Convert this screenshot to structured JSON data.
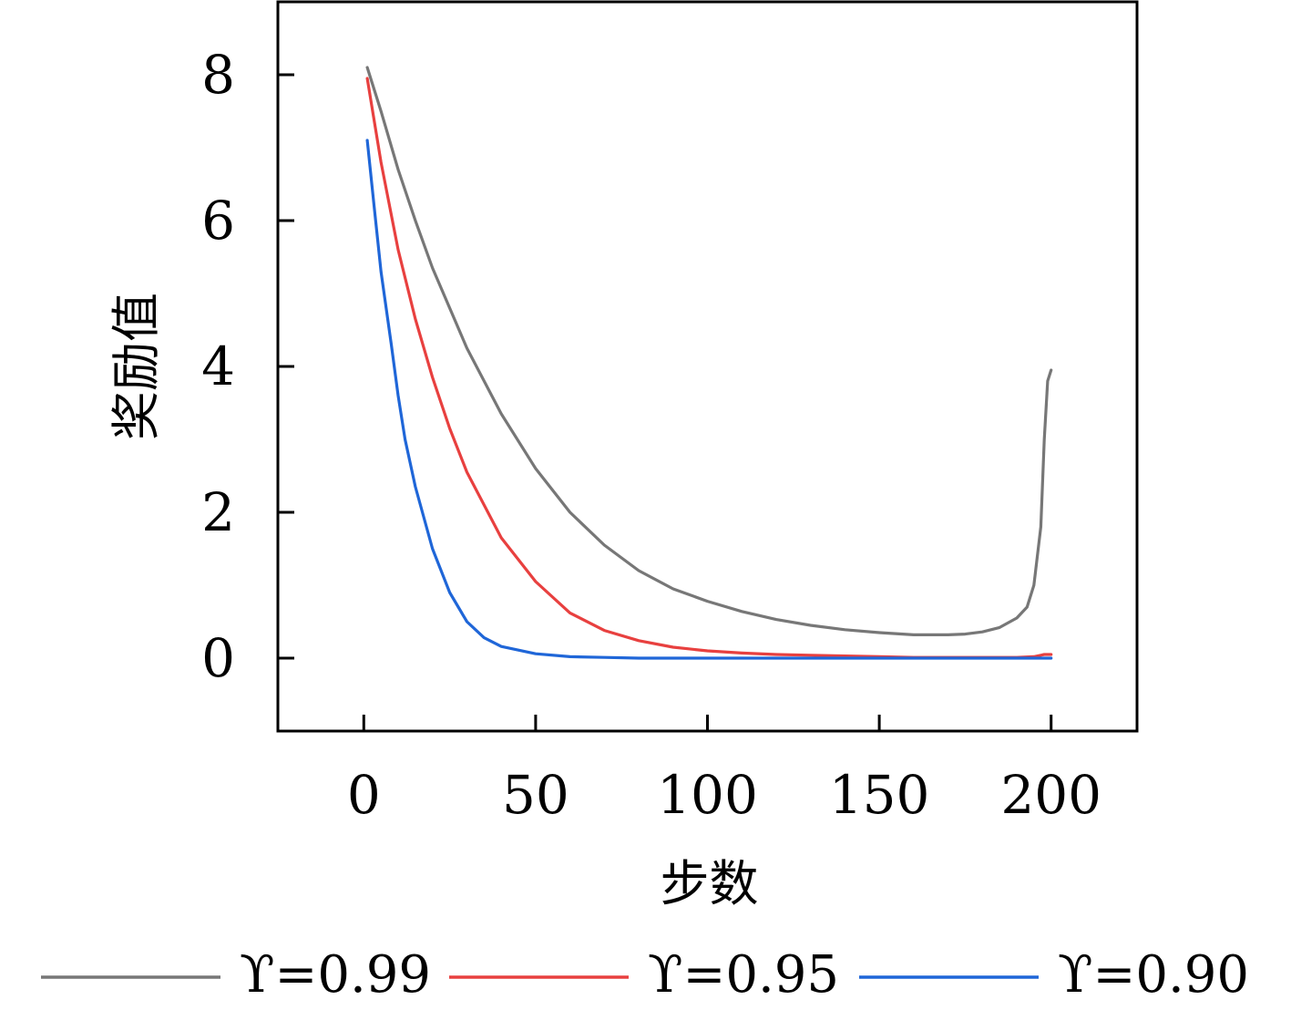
{
  "chart_data": {
    "type": "line",
    "xlabel": "步数",
    "ylabel": "奖励值",
    "xlim": [
      -25,
      225
    ],
    "ylim": [
      -1,
      9
    ],
    "xticks": [
      0,
      50,
      100,
      150,
      200
    ],
    "yticks": [
      0,
      2,
      4,
      6,
      8
    ],
    "legend_position": "bottom",
    "series": [
      {
        "name": "ϒ=0.99",
        "color": "#777777",
        "x": [
          1,
          5,
          10,
          15,
          20,
          30,
          40,
          50,
          60,
          70,
          80,
          90,
          100,
          110,
          120,
          130,
          140,
          150,
          160,
          170,
          175,
          180,
          185,
          190,
          193,
          195,
          197,
          198,
          199,
          200
        ],
        "y": [
          8.1,
          7.5,
          6.7,
          6.0,
          5.35,
          4.25,
          3.35,
          2.6,
          2.0,
          1.55,
          1.2,
          0.95,
          0.78,
          0.64,
          0.53,
          0.45,
          0.39,
          0.35,
          0.32,
          0.32,
          0.33,
          0.36,
          0.42,
          0.55,
          0.7,
          1.0,
          1.8,
          3.0,
          3.8,
          3.95
        ]
      },
      {
        "name": "ϒ=0.95",
        "color": "#e8403f",
        "x": [
          1,
          5,
          10,
          15,
          20,
          25,
          30,
          40,
          50,
          60,
          70,
          80,
          90,
          100,
          110,
          120,
          130,
          140,
          150,
          160,
          170,
          180,
          190,
          195,
          198,
          200
        ],
        "y": [
          7.95,
          6.8,
          5.6,
          4.65,
          3.85,
          3.15,
          2.55,
          1.65,
          1.05,
          0.62,
          0.38,
          0.24,
          0.15,
          0.1,
          0.07,
          0.05,
          0.04,
          0.03,
          0.02,
          0.01,
          0.01,
          0.01,
          0.01,
          0.02,
          0.05,
          0.05
        ]
      },
      {
        "name": "ϒ=0.90",
        "color": "#1f66d8",
        "x": [
          1,
          3,
          5,
          8,
          10,
          12,
          15,
          20,
          25,
          30,
          35,
          40,
          50,
          60,
          70,
          80,
          90,
          100,
          120,
          150,
          180,
          200
        ],
        "y": [
          7.1,
          6.2,
          5.3,
          4.3,
          3.6,
          3.0,
          2.35,
          1.5,
          0.9,
          0.5,
          0.28,
          0.16,
          0.06,
          0.02,
          0.01,
          0.0,
          0.0,
          0.0,
          0.0,
          0.0,
          0.0,
          0.0
        ]
      }
    ]
  }
}
